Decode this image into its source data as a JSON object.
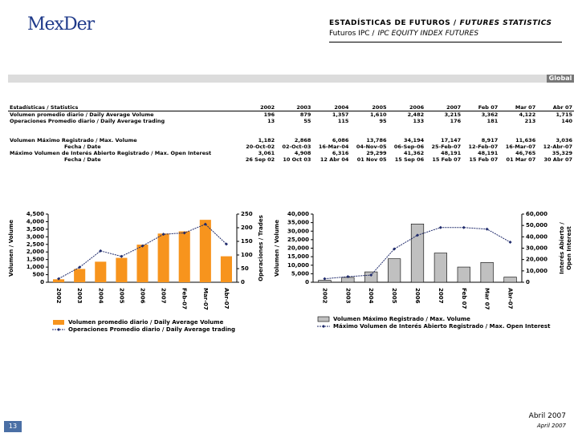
{
  "header": {
    "logo": "MexDer",
    "title": "ESTADÍSTICAS DE FUTUROS /",
    "title_en": "FUTURES STATISTICS",
    "subtitle": "Futuros IPC /",
    "subtitle_en": "IPC EQUITY INDEX FUTURES"
  },
  "section": "Global",
  "table": {
    "rows": [
      [
        "Estadísticas / Statistics",
        "2002",
        "2003",
        "2004",
        "2005",
        "2006",
        "2007",
        "Feb 07",
        "Mar 07",
        "Abr 07"
      ],
      [
        "Volumen promedio diario / Daily Average Volume",
        "196",
        "879",
        "1,357",
        "1,610",
        "2,482",
        "3,215",
        "3,362",
        "4,122",
        "1,715"
      ],
      [
        "Operaciones Promedio diario / Daily Average trading",
        "13",
        "55",
        "115",
        "95",
        "133",
        "176",
        "181",
        "213",
        "140"
      ],
      [
        "Volumen Máximo Registrado / Max. Volume",
        "1,182",
        "2,868",
        "6,086",
        "13,786",
        "34,194",
        "17,147",
        "8,917",
        "11,636",
        "3,036"
      ],
      [
        "Fecha / Date",
        "20-Oct-02",
        "02-Oct-03",
        "16-Mar-04",
        "04-Nov-05",
        "06-Sep-06",
        "25-Feb-07",
        "12-Feb-07",
        "16-Mar-07",
        "12-Abr-07"
      ],
      [
        "Máximo Volumen de Interés Abierto Registrado / Max. Open Interest",
        "3,061",
        "4,908",
        "6,316",
        "29,299",
        "41,362",
        "48,191",
        "48,191",
        "46,765",
        "35,329"
      ],
      [
        "Fecha / Date",
        "26 Sep 02",
        "10 Oct 03",
        "12 Abr 04",
        "01 Nov 05",
        "15 Sep 06",
        "15 Feb 07",
        "15 Feb 07",
        "01 Mar 07",
        "30 Abr 07"
      ]
    ]
  },
  "chart_data": [
    {
      "type": "bar_line",
      "categories": [
        "2002",
        "2003",
        "2004",
        "2005",
        "2006",
        "2007",
        "Feb-07",
        "Mar-07",
        "Abr-07"
      ],
      "ylabel": "Volumen / Volume",
      "y2label": [
        "Operaciones / Trades"
      ],
      "ylim": [
        0,
        4500
      ],
      "yticks": [
        0,
        500,
        {
          "value": 1000,
          "label": "1,000"
        },
        {
          "value": 1500,
          "label": "1,500"
        },
        {
          "value": 2000,
          "label": "2,000"
        },
        {
          "value": 2500,
          "label": "2,500"
        },
        {
          "value": 3000,
          "label": "3,000"
        },
        {
          "value": 3500,
          "label": "3,500"
        },
        {
          "value": 4000,
          "label": "4,000"
        },
        {
          "value": 4500,
          "label": "4,500"
        }
      ],
      "y2lim": [
        0,
        250
      ],
      "y2ticks": [
        0,
        50,
        100,
        150,
        200,
        250
      ],
      "series": [
        {
          "name": "Volumen promedio diario / Daily Average Volume",
          "color": "#f7941d",
          "values": [
            196,
            879,
            1357,
            1610,
            2482,
            3215,
            3362,
            4122,
            1715
          ]
        },
        {
          "name": "Operaciones Promedio diario / Daily Average trading",
          "color": "#1f2a6b",
          "axis": "y2",
          "values": [
            13,
            55,
            115,
            95,
            133,
            176,
            181,
            213,
            140
          ]
        }
      ]
    },
    {
      "type": "bar_line",
      "categories": [
        "2002",
        "2003",
        "2004",
        "2005",
        "2006",
        "2007",
        "Feb 07",
        "Mar 07",
        "Abr-07"
      ],
      "ylabel": "Volumen / Volume",
      "y2label": [
        "Interés Abierto /",
        "Open Interest"
      ],
      "ylim": [
        0,
        40000
      ],
      "yticks": [
        0,
        {
          "value": 5000,
          "label": "5,000"
        },
        {
          "value": 10000,
          "label": "10,000"
        },
        {
          "value": 15000,
          "label": "15,000"
        },
        {
          "value": 20000,
          "label": "20,000"
        },
        {
          "value": 25000,
          "label": "25,000"
        },
        {
          "value": 30000,
          "label": "30,000"
        },
        {
          "value": 35000,
          "label": "35,000"
        },
        {
          "value": 40000,
          "label": "40,000"
        }
      ],
      "y2lim": [
        0,
        60000
      ],
      "y2ticks": [
        0,
        {
          "value": 10000,
          "label": "10,000"
        },
        {
          "value": 20000,
          "label": "20,000"
        },
        {
          "value": 30000,
          "label": "30,000"
        },
        {
          "value": 40000,
          "label": "40,000"
        },
        {
          "value": 50000,
          "label": "50,000"
        },
        {
          "value": 60000,
          "label": "60,000"
        }
      ],
      "series": [
        {
          "name": "Volumen Máximo Registrado / Max. Volume",
          "color": "#c0c0c0",
          "values": [
            1182,
            2868,
            6086,
            13786,
            34194,
            17147,
            8917,
            11636,
            3036
          ]
        },
        {
          "name": "Máximo Volumen de Interés Abierto Registrado / Max. Open Interest",
          "color": "#1f2a6b",
          "axis": "y2",
          "values": [
            3061,
            4908,
            6316,
            29299,
            41362,
            48191,
            48191,
            46765,
            35329
          ]
        }
      ]
    }
  ],
  "footer": {
    "page": "13",
    "date": "Abril 2007",
    "date_en": "April 2007"
  }
}
